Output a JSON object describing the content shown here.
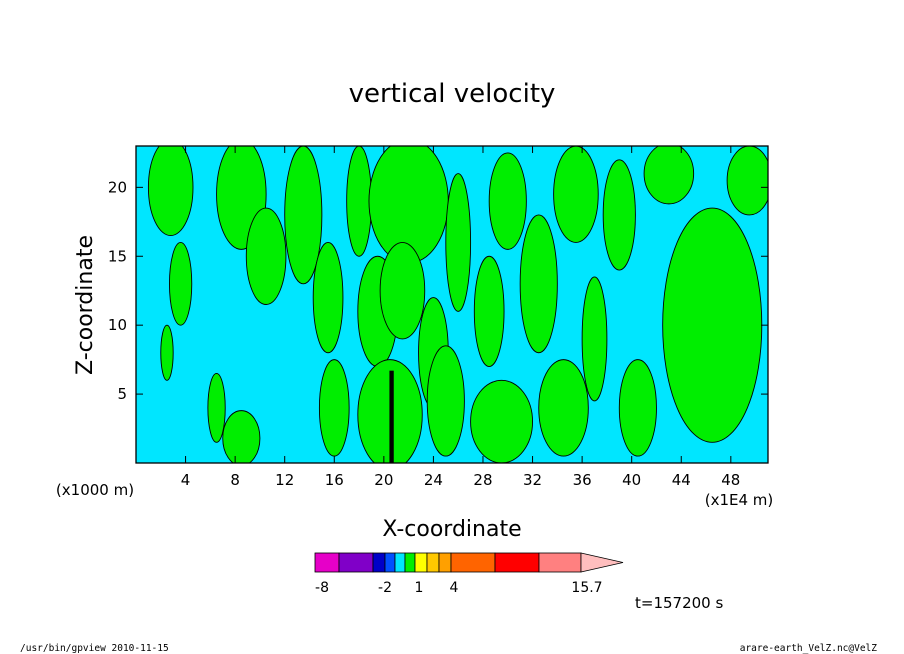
{
  "chart_data": {
    "type": "heatmap",
    "title": "vertical velocity",
    "xlabel": "X-coordinate",
    "ylabel": "Z-coordinate",
    "x_unit_label": "(x1000 m)",
    "x_range_label": "(x1E4 m)",
    "xlim": [
      0,
      51
    ],
    "ylim": [
      0,
      23
    ],
    "x_ticks": [
      4,
      8,
      12,
      16,
      20,
      24,
      28,
      32,
      36,
      40,
      44,
      48
    ],
    "x_tick_labels": [
      "4",
      "8",
      "12",
      "16",
      "20",
      "24",
      "28",
      "32",
      "36",
      "40",
      "44",
      "48"
    ],
    "y_ticks": [
      5,
      10,
      15,
      20
    ],
    "y_tick_labels": [
      "5",
      "10",
      "15",
      "20"
    ],
    "background_level_color": "#00e6ff",
    "positive_region_color": "#00ee00",
    "updraft_core_color": "#000000",
    "green_regions": [
      {
        "x": 2.8,
        "z": 20.0,
        "rx": 1.8,
        "rz": 3.5
      },
      {
        "x": 3.6,
        "z": 13.0,
        "rx": 0.9,
        "rz": 3.0
      },
      {
        "x": 2.5,
        "z": 8.0,
        "rx": 0.5,
        "rz": 2.0
      },
      {
        "x": 8.5,
        "z": 19.5,
        "rx": 2.0,
        "rz": 4.0
      },
      {
        "x": 10.5,
        "z": 15.0,
        "rx": 1.6,
        "rz": 3.5
      },
      {
        "x": 6.5,
        "z": 4.0,
        "rx": 0.7,
        "rz": 2.5
      },
      {
        "x": 8.5,
        "z": 1.8,
        "rx": 1.5,
        "rz": 2.0
      },
      {
        "x": 13.5,
        "z": 18.0,
        "rx": 1.5,
        "rz": 5.0
      },
      {
        "x": 15.5,
        "z": 12.0,
        "rx": 1.2,
        "rz": 4.0
      },
      {
        "x": 16.0,
        "z": 4.0,
        "rx": 1.2,
        "rz": 3.5
      },
      {
        "x": 18.0,
        "z": 19.0,
        "rx": 1.0,
        "rz": 4.0
      },
      {
        "x": 19.5,
        "z": 11.0,
        "rx": 1.6,
        "rz": 4.0
      },
      {
        "x": 20.5,
        "z": 3.5,
        "rx": 2.6,
        "rz": 4.0
      },
      {
        "x": 22.0,
        "z": 19.0,
        "rx": 3.2,
        "rz": 4.5
      },
      {
        "x": 21.5,
        "z": 12.5,
        "rx": 1.8,
        "rz": 3.5
      },
      {
        "x": 24.0,
        "z": 8.0,
        "rx": 1.2,
        "rz": 4.0
      },
      {
        "x": 25.0,
        "z": 4.5,
        "rx": 1.5,
        "rz": 4.0
      },
      {
        "x": 26.0,
        "z": 16.0,
        "rx": 1.0,
        "rz": 5.0
      },
      {
        "x": 28.5,
        "z": 11.0,
        "rx": 1.2,
        "rz": 4.0
      },
      {
        "x": 30.0,
        "z": 19.0,
        "rx": 1.5,
        "rz": 3.5
      },
      {
        "x": 32.5,
        "z": 13.0,
        "rx": 1.5,
        "rz": 5.0
      },
      {
        "x": 29.5,
        "z": 3.0,
        "rx": 2.5,
        "rz": 3.0
      },
      {
        "x": 34.5,
        "z": 4.0,
        "rx": 2.0,
        "rz": 3.5
      },
      {
        "x": 35.5,
        "z": 19.5,
        "rx": 1.8,
        "rz": 3.5
      },
      {
        "x": 37.0,
        "z": 9.0,
        "rx": 1.0,
        "rz": 4.5
      },
      {
        "x": 39.0,
        "z": 18.0,
        "rx": 1.3,
        "rz": 4.0
      },
      {
        "x": 40.5,
        "z": 4.0,
        "rx": 1.5,
        "rz": 3.5
      },
      {
        "x": 43.0,
        "z": 21.0,
        "rx": 2.0,
        "rz": 2.2
      },
      {
        "x": 46.5,
        "z": 10.0,
        "rx": 4.0,
        "rz": 8.5
      },
      {
        "x": 49.5,
        "z": 20.5,
        "rx": 1.8,
        "rz": 2.5
      }
    ],
    "colorbar": {
      "colors": [
        "#e600c8",
        "#8000c8",
        "#0000c8",
        "#0050ff",
        "#00e6ff",
        "#00ee00",
        "#ffff00",
        "#ffc800",
        "#ffa000",
        "#ff6400",
        "#ff0000",
        "#ff8080",
        "#ffbebe"
      ],
      "tick_labels": [
        "-8",
        "-2",
        "1",
        "4",
        "15.7"
      ]
    },
    "time_label": "t=157200 s"
  },
  "footer": {
    "left": "/usr/bin/gpview 2010-11-15",
    "right": "arare-earth_VelZ.nc@VelZ"
  }
}
